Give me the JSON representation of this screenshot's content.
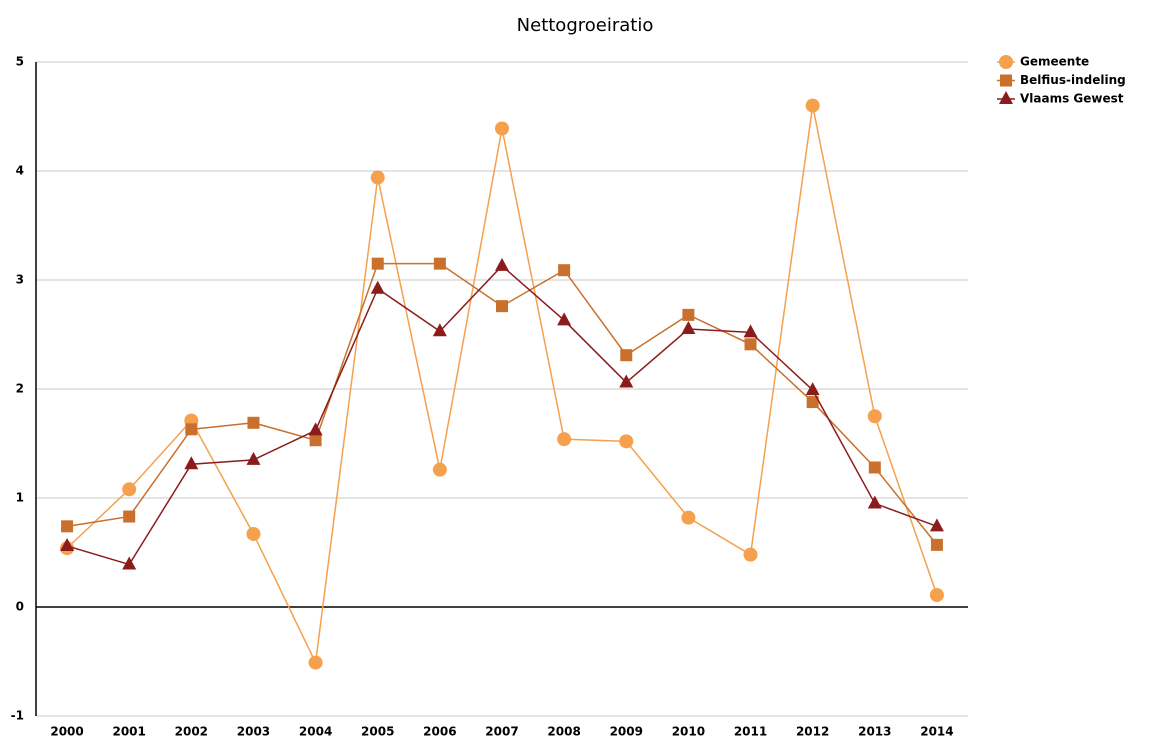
{
  "chart_data": {
    "type": "line",
    "title": "Nettogroeiratio",
    "categories": [
      "2000",
      "2001",
      "2002",
      "2003",
      "2004",
      "2005",
      "2006",
      "2007",
      "2008",
      "2009",
      "2010",
      "2011",
      "2012",
      "2013",
      "2014"
    ],
    "series": [
      {
        "name": "Gemeente",
        "color": "#f5a04c",
        "marker": "circle",
        "values": [
          0.54,
          1.08,
          1.71,
          0.67,
          -0.51,
          3.94,
          1.26,
          4.39,
          1.54,
          1.52,
          0.82,
          0.48,
          4.6,
          1.75,
          0.11
        ]
      },
      {
        "name": "Belfius-indeling",
        "color": "#c8702c",
        "marker": "square",
        "values": [
          0.74,
          0.83,
          1.63,
          1.69,
          1.53,
          3.15,
          3.15,
          2.76,
          3.09,
          2.31,
          2.68,
          2.41,
          1.88,
          1.28,
          0.57
        ]
      },
      {
        "name": "Vlaams Gewest",
        "color": "#8c1c1c",
        "marker": "triangle",
        "values": [
          0.56,
          0.39,
          1.31,
          1.35,
          1.62,
          2.92,
          2.53,
          3.13,
          2.63,
          2.06,
          2.55,
          2.52,
          1.99,
          0.95,
          0.74
        ]
      }
    ],
    "ylim": [
      -1,
      5
    ],
    "yticks": [
      -1,
      0,
      1,
      2,
      3,
      4,
      5
    ],
    "grid": true,
    "legend": "right"
  }
}
